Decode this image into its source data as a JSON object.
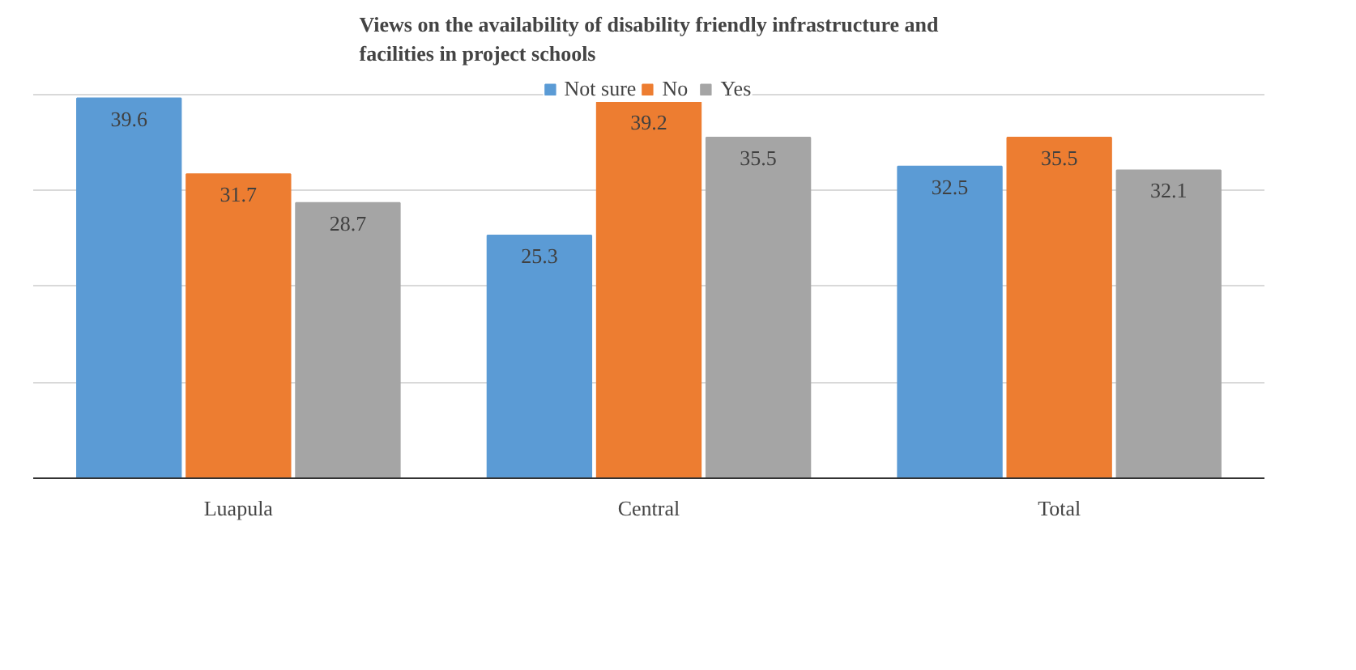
{
  "chart_data": {
    "type": "bar",
    "title": "Views on the availability of disability friendly infrastructure and facilities in project schools",
    "categories": [
      "Luapula",
      "Central",
      "Total"
    ],
    "series": [
      {
        "name": "Not sure",
        "color": "#5b9bd5",
        "values": [
          39.6,
          25.3,
          32.5
        ]
      },
      {
        "name": "No",
        "color": "#ed7d31",
        "values": [
          31.7,
          39.2,
          35.5
        ]
      },
      {
        "name": "Yes",
        "color": "#a5a5a5",
        "values": [
          28.7,
          35.5,
          32.1
        ]
      }
    ],
    "grid": "y",
    "legend": "top",
    "data_labels": true,
    "tick_labels": "x"
  }
}
